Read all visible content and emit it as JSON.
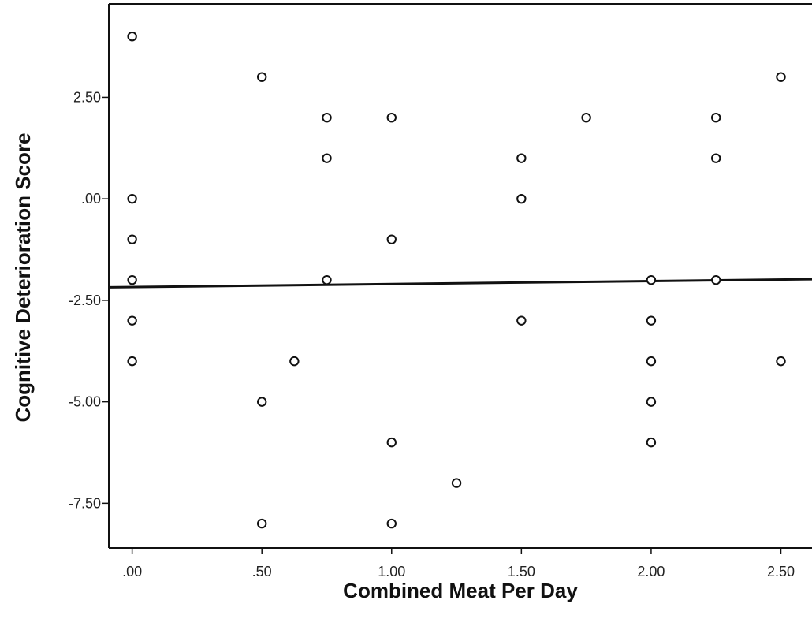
{
  "chart_data": {
    "type": "scatter",
    "title": "",
    "xlabel": "Combined Meat Per Day",
    "ylabel": "Cognitive Deterioration Score",
    "xlim": [
      -0.09,
      2.62
    ],
    "ylim": [
      -8.6,
      4.8
    ],
    "x_ticks": [
      0,
      0.5,
      1.0,
      1.5,
      2.0,
      2.5
    ],
    "x_tick_labels": [
      ".00",
      ".50",
      "1.00",
      "1.50",
      "2.00",
      "2.50"
    ],
    "y_ticks": [
      2.5,
      0,
      -2.5,
      -5.0,
      -7.5
    ],
    "y_tick_labels": [
      "2.50",
      ".00",
      "-2.50",
      "-5.00",
      "-7.50"
    ],
    "grid": false,
    "legend": "none",
    "points": [
      {
        "x": 0,
        "y": 4
      },
      {
        "x": 0,
        "y": 0
      },
      {
        "x": 0,
        "y": -1
      },
      {
        "x": 0,
        "y": -2
      },
      {
        "x": 0,
        "y": -3
      },
      {
        "x": 0,
        "y": -4
      },
      {
        "x": 0.5,
        "y": 3
      },
      {
        "x": 0.5,
        "y": -5
      },
      {
        "x": 0.5,
        "y": -8
      },
      {
        "x": 0.625,
        "y": -4
      },
      {
        "x": 0.75,
        "y": 2
      },
      {
        "x": 0.75,
        "y": 1
      },
      {
        "x": 0.75,
        "y": -2
      },
      {
        "x": 1.0,
        "y": 2
      },
      {
        "x": 1.0,
        "y": -1
      },
      {
        "x": 1.0,
        "y": -6
      },
      {
        "x": 1.0,
        "y": -8
      },
      {
        "x": 1.25,
        "y": -7
      },
      {
        "x": 1.5,
        "y": 1
      },
      {
        "x": 1.5,
        "y": 0
      },
      {
        "x": 1.5,
        "y": -3
      },
      {
        "x": 1.75,
        "y": 2
      },
      {
        "x": 2.0,
        "y": -2
      },
      {
        "x": 2.0,
        "y": -3
      },
      {
        "x": 2.0,
        "y": -4
      },
      {
        "x": 2.0,
        "y": -5
      },
      {
        "x": 2.0,
        "y": -6
      },
      {
        "x": 2.25,
        "y": 2
      },
      {
        "x": 2.25,
        "y": 1
      },
      {
        "x": 2.25,
        "y": -2
      },
      {
        "x": 2.5,
        "y": 3
      },
      {
        "x": 2.5,
        "y": -4
      }
    ],
    "fit_line": {
      "x": [
        -0.09,
        2.62
      ],
      "y": [
        -2.18,
        -1.98
      ]
    },
    "colors": {
      "marker": "#111111",
      "line": "#111111",
      "axis": "#111111"
    }
  }
}
